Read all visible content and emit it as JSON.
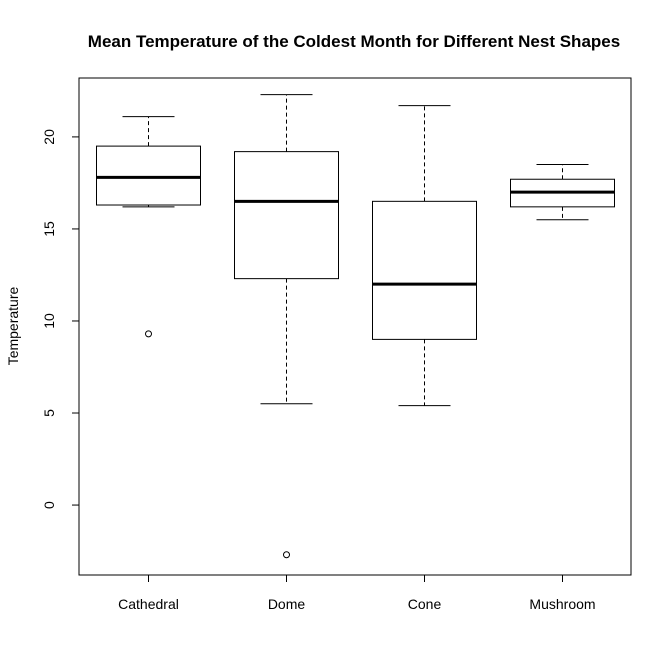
{
  "chart_data": {
    "type": "boxplot",
    "title": "Mean Temperature of the Coldest Month for Different Nest Shapes",
    "xlabel": "",
    "ylabel": "Temperature",
    "ylim": [
      -3.8,
      23.2
    ],
    "yticks": [
      0,
      5,
      10,
      15,
      20
    ],
    "grid": false,
    "categories": [
      "Cathedral",
      "Dome",
      "Cone",
      "Mushroom"
    ],
    "boxes": [
      {
        "name": "Cathedral",
        "whisker_low": 16.2,
        "q1": 16.3,
        "median": 17.8,
        "q3": 19.5,
        "whisker_high": 21.1,
        "outliers": [
          9.3
        ]
      },
      {
        "name": "Dome",
        "whisker_low": 5.5,
        "q1": 12.3,
        "median": 16.5,
        "q3": 19.2,
        "whisker_high": 22.3,
        "outliers": [
          -2.7
        ]
      },
      {
        "name": "Cone",
        "whisker_low": 5.4,
        "q1": 9.0,
        "median": 12.0,
        "q3": 16.5,
        "whisker_high": 21.7,
        "outliers": []
      },
      {
        "name": "Mushroom",
        "whisker_low": 15.5,
        "q1": 16.2,
        "median": 17.0,
        "q3": 17.7,
        "whisker_high": 18.5,
        "outliers": []
      }
    ],
    "colors": {
      "stroke": "#000000",
      "background": "#ffffff"
    }
  }
}
